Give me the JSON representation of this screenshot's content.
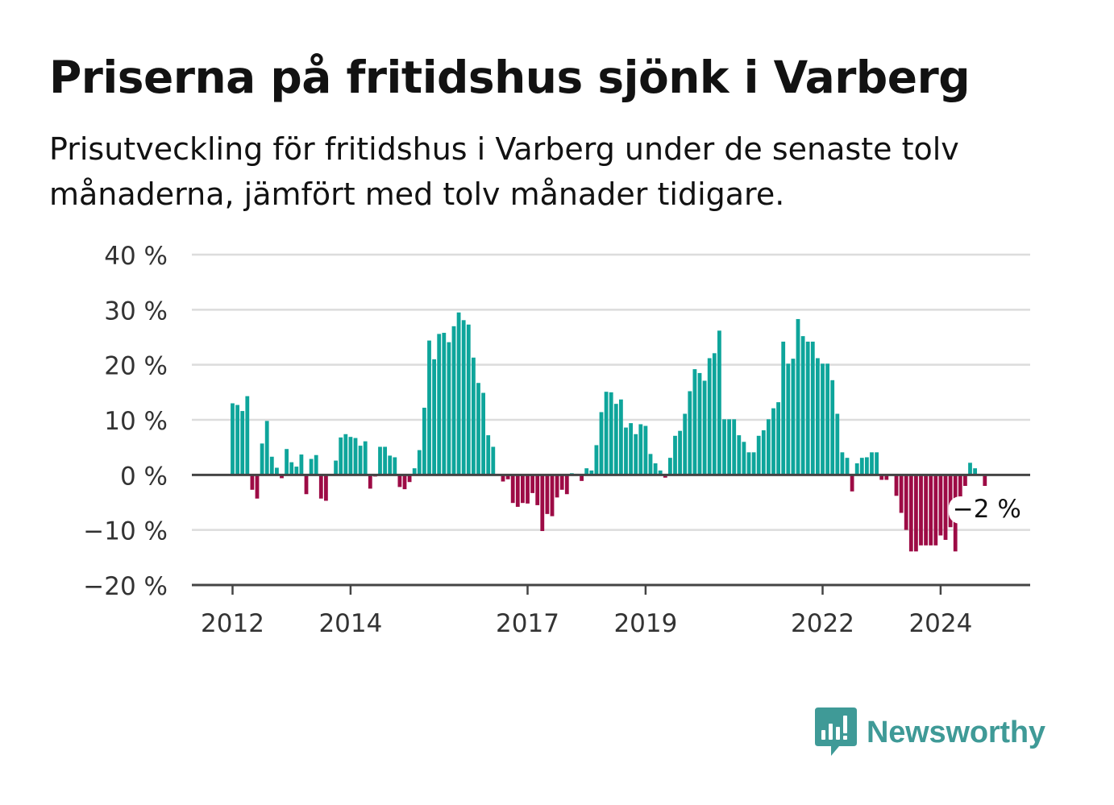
{
  "title": "Priserna på fritidshus sjönk i Varberg",
  "subtitle": "Prisutveckling för fritidshus i Varberg under de senaste tolv månaderna, jämfört med tolv månader tidigare.",
  "brand": "Newsworthy",
  "colors": {
    "positive": "#0ea59b",
    "negative": "#9d0b45",
    "grid": "#dcdcdc",
    "axis": "#444444",
    "text": "#333333",
    "brand": "#3f9a97"
  },
  "chart_data": {
    "type": "bar",
    "unit": "%",
    "ylim": [
      -20,
      40
    ],
    "yticks": [
      -20,
      -10,
      0,
      10,
      20,
      30,
      40
    ],
    "ytick_labels": [
      "−20 %",
      "−10 %",
      "0 %",
      "10 %",
      "20 %",
      "30 %",
      "40 %"
    ],
    "xticks": [
      "2012",
      "2014",
      "2017",
      "2019",
      "2022",
      "2024"
    ],
    "grid": true,
    "series": [
      {
        "start": "2012-01",
        "values": [
          13,
          12.7,
          11.6,
          14.3,
          -2.7,
          -4.3,
          5.7,
          9.8,
          3.3,
          1.3,
          -0.6,
          4.7,
          2.3,
          1.5,
          3.7,
          -3.5,
          2.9,
          3.6,
          -4.3,
          -4.7,
          -0.1,
          2.6,
          6.8,
          7.4,
          6.9,
          6.7,
          5.3,
          6.1,
          -2.5,
          -0.3,
          5.1,
          5.1,
          3.5,
          3.2,
          -2.2,
          -2.6,
          -1.3,
          1.2,
          4.5,
          12.2,
          24.4,
          21,
          25.6,
          25.8,
          24.1,
          27,
          29.5,
          28.1,
          27.3,
          21.3,
          16.7,
          14.9,
          7.2,
          5.1,
          0,
          -1.2,
          -0.8,
          -5.1,
          -5.8,
          -5.1,
          -5.2,
          -3.3,
          -5.5,
          -10.2,
          -7.1,
          -7.5,
          -4.1,
          -2.7,
          -3.5,
          0.3,
          0.2,
          -1.1,
          1.2,
          0.8,
          5.4,
          11.4,
          15.1,
          15,
          12.9,
          13.7,
          8.6,
          9.4,
          7.4,
          9.2,
          8.9,
          3.8,
          2.1,
          0.8,
          -0.5,
          3.1,
          7.1,
          8,
          11.1,
          15.2,
          19.2,
          18.5,
          17.1,
          21.2,
          22.1,
          26.2,
          10.1,
          10.1,
          10.1,
          7.2,
          6,
          4.1,
          4.1,
          7.1,
          8.1,
          10.1,
          12.1,
          13.2,
          24.2,
          20.2,
          21.1,
          28.3,
          25.2,
          24.2,
          24.2,
          21.2,
          20.2,
          20.2,
          17.2,
          11.1,
          4.1,
          3.1,
          -3,
          2.1,
          3.1,
          3.2,
          4.1,
          4.1,
          -0.9,
          -0.9,
          0,
          -3.8,
          -6.9,
          -10,
          -13.9,
          -13.9,
          -12.8,
          -12.8,
          -12.8,
          -12.8,
          -11,
          -11.8,
          -9.5,
          -13.9,
          -8.5,
          -2,
          2.2,
          1.2,
          0,
          -2
        ]
      }
    ],
    "annotation": {
      "text": "−2 %",
      "value": -2
    }
  }
}
